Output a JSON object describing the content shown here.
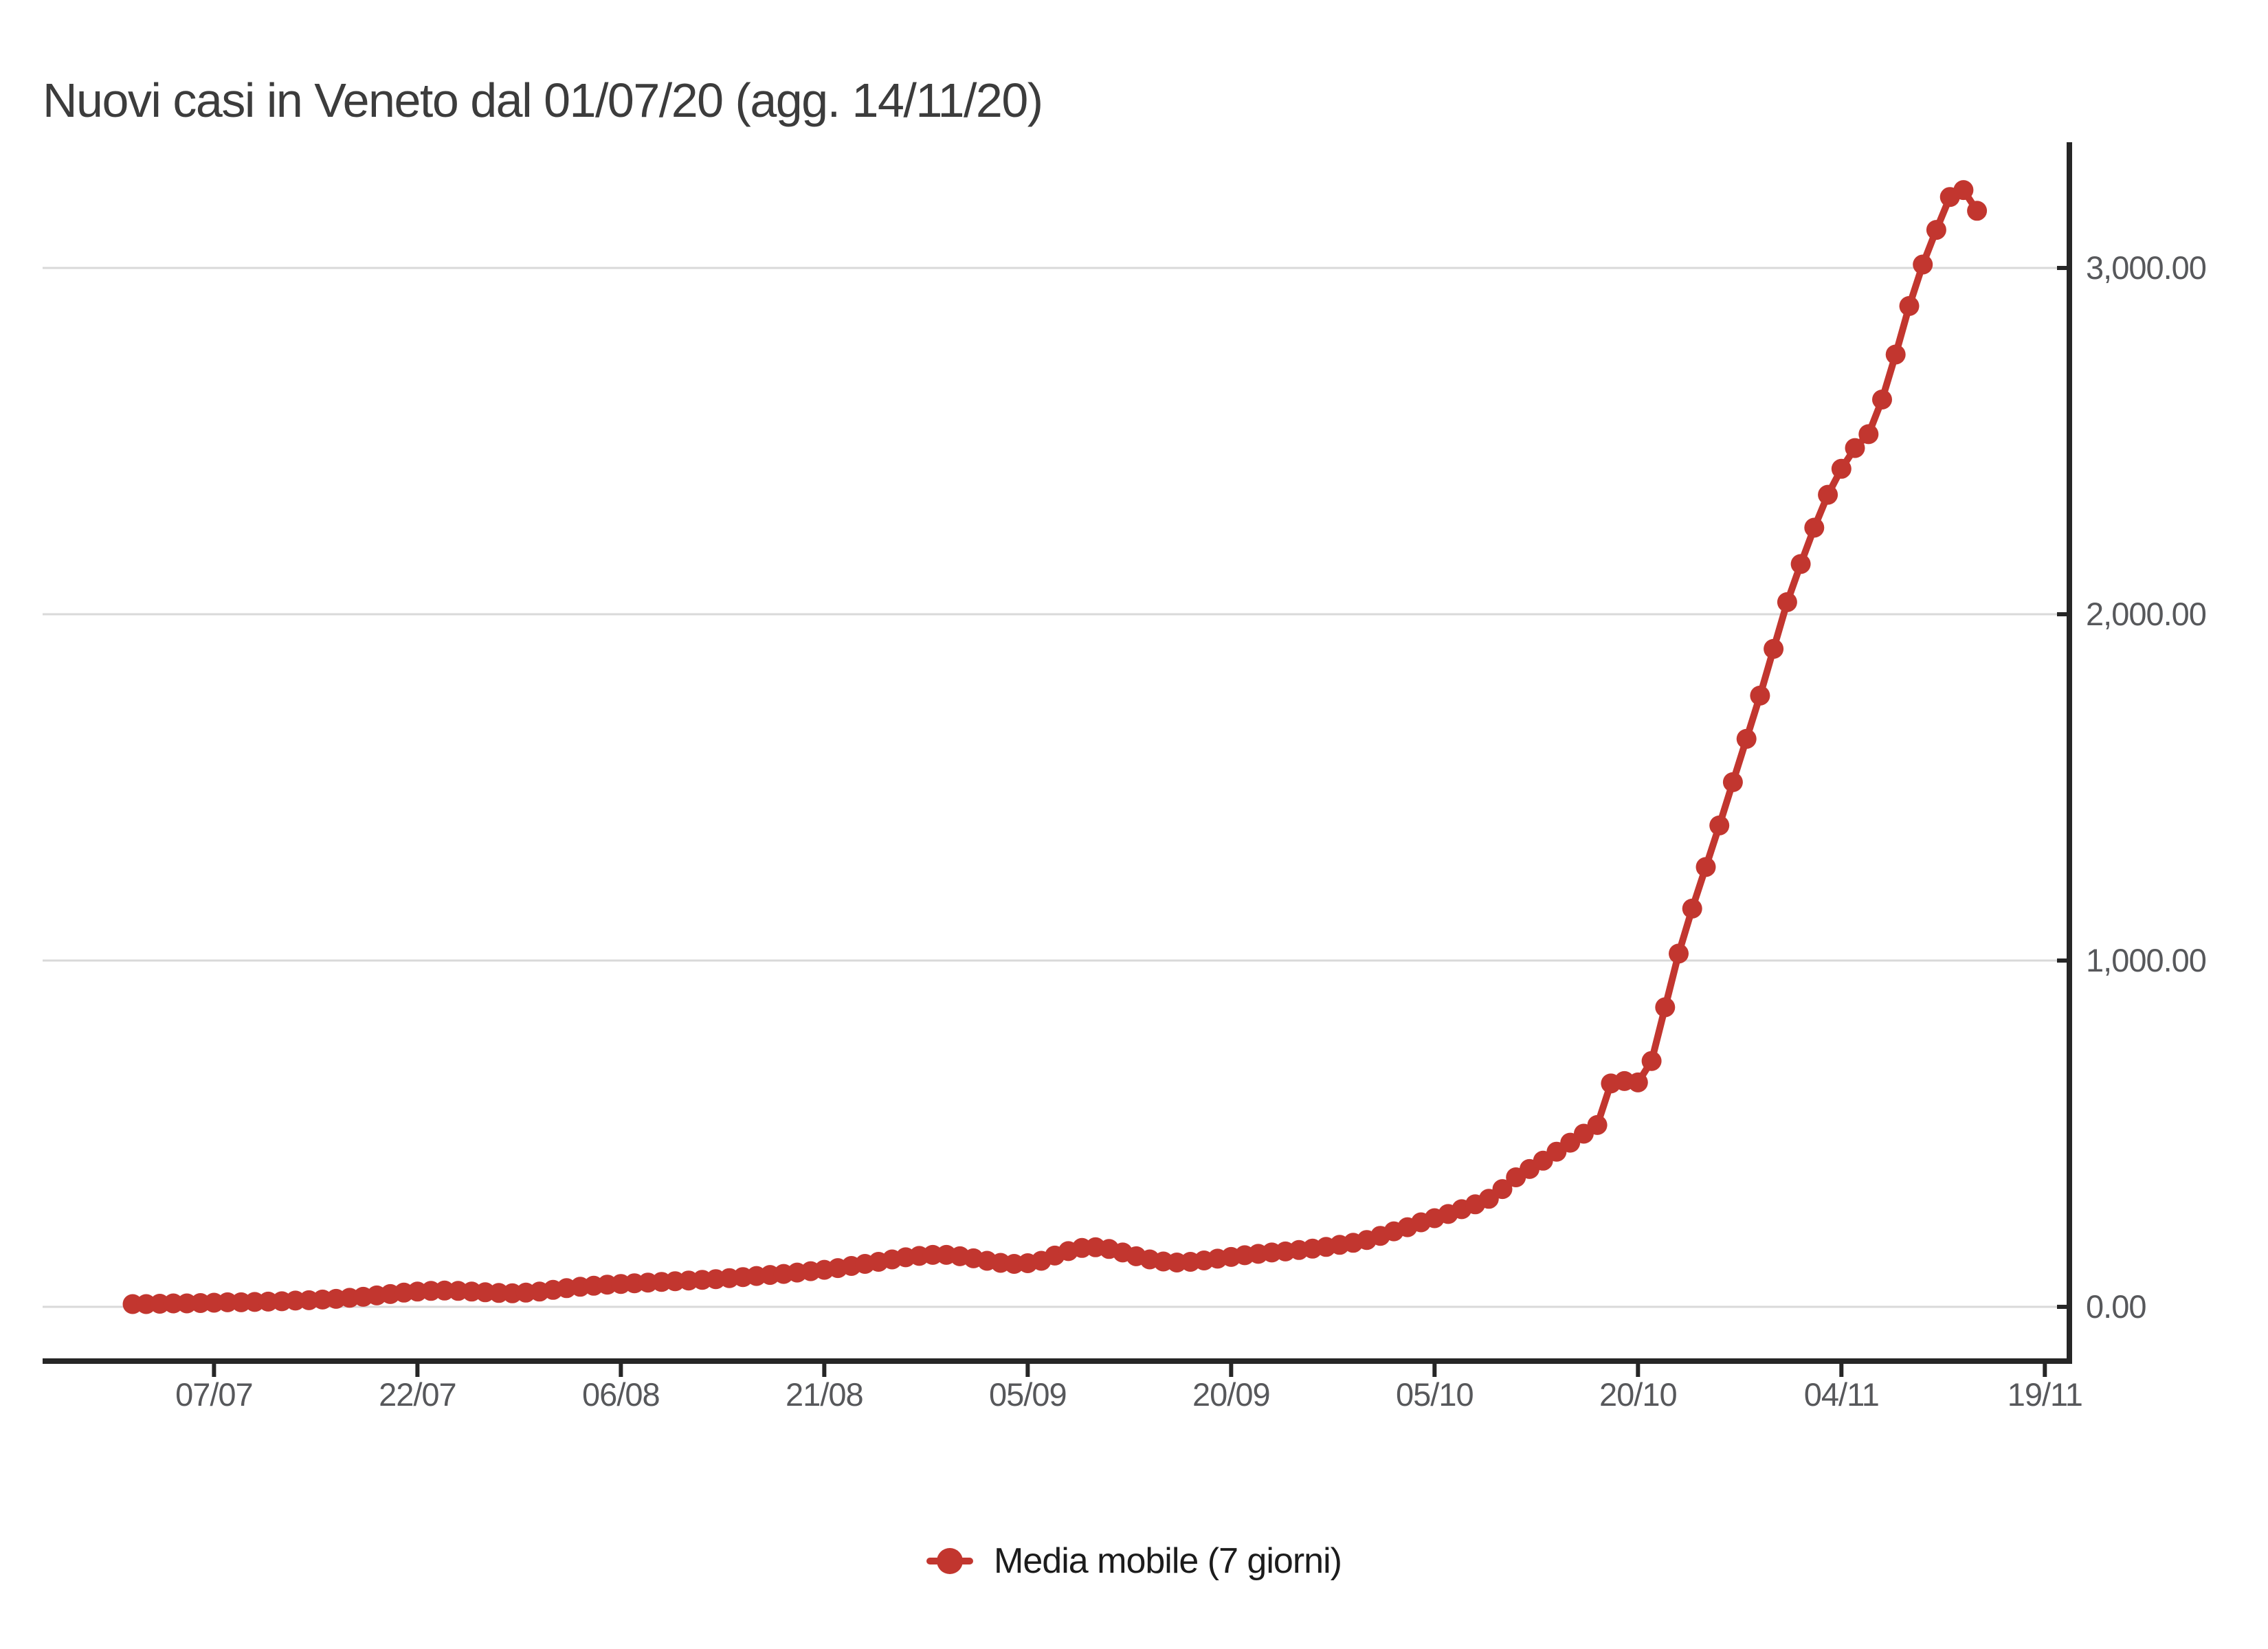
{
  "title": "Nuovi casi in Veneto dal 01/07/20 (agg. 14/11/20)",
  "legend": {
    "label": "Media mobile (7 giorni)"
  },
  "colors": {
    "series": "#c2362f",
    "grid": "#d9d9d9",
    "axis": "#262626",
    "tick_label": "#57585b",
    "title": "#3c3c3c",
    "legend_text": "#1c1c1c",
    "background": "#ffffff"
  },
  "y_axis": {
    "side": "right",
    "ticks": [
      {
        "label": "0.00",
        "value": 0
      },
      {
        "label": "1,000.00",
        "value": 1000
      },
      {
        "label": "2,000.00",
        "value": 2000
      },
      {
        "label": "3,000.00",
        "value": 3000
      }
    ]
  },
  "x_axis": {
    "ticks": [
      {
        "label": "07/07",
        "day": 6
      },
      {
        "label": "22/07",
        "day": 21
      },
      {
        "label": "06/08",
        "day": 36
      },
      {
        "label": "21/08",
        "day": 51
      },
      {
        "label": "05/09",
        "day": 66
      },
      {
        "label": "20/09",
        "day": 81
      },
      {
        "label": "05/10",
        "day": 96
      },
      {
        "label": "20/10",
        "day": 111
      },
      {
        "label": "04/11",
        "day": 126
      },
      {
        "label": "19/11",
        "day": 141
      }
    ]
  },
  "chart_data": {
    "type": "line",
    "title": "Nuovi casi in Veneto dal 01/07/20 (agg. 14/11/20)",
    "series_name": "Media mobile (7 giorni)",
    "xlabel": "",
    "ylabel": "",
    "ylim": [
      0,
      3520
    ],
    "x_range": [
      "01/07/20",
      "14/11/20"
    ],
    "grid": "horizontal",
    "legend_position": "bottom",
    "marker": "circle",
    "x_dates": [
      "01/07",
      "02/07",
      "03/07",
      "04/07",
      "05/07",
      "06/07",
      "07/07",
      "08/07",
      "09/07",
      "10/07",
      "11/07",
      "12/07",
      "13/07",
      "14/07",
      "15/07",
      "16/07",
      "17/07",
      "18/07",
      "19/07",
      "20/07",
      "21/07",
      "22/07",
      "23/07",
      "24/07",
      "25/07",
      "26/07",
      "27/07",
      "28/07",
      "29/07",
      "30/07",
      "31/07",
      "01/08",
      "02/08",
      "03/08",
      "04/08",
      "05/08",
      "06/08",
      "07/08",
      "08/08",
      "09/08",
      "10/08",
      "11/08",
      "12/08",
      "13/08",
      "14/08",
      "15/08",
      "16/08",
      "17/08",
      "18/08",
      "19/08",
      "20/08",
      "21/08",
      "22/08",
      "23/08",
      "24/08",
      "25/08",
      "26/08",
      "27/08",
      "28/08",
      "29/08",
      "30/08",
      "31/08",
      "01/09",
      "02/09",
      "03/09",
      "04/09",
      "05/09",
      "06/09",
      "07/09",
      "08/09",
      "09/09",
      "10/09",
      "11/09",
      "12/09",
      "13/09",
      "14/09",
      "15/09",
      "16/09",
      "17/09",
      "18/09",
      "19/09",
      "20/09",
      "21/09",
      "22/09",
      "23/09",
      "24/09",
      "25/09",
      "26/09",
      "27/09",
      "28/09",
      "29/09",
      "30/09",
      "01/10",
      "02/10",
      "03/10",
      "04/10",
      "05/10",
      "06/10",
      "07/10",
      "08/10",
      "09/10",
      "10/10",
      "11/10",
      "12/10",
      "13/10",
      "14/10",
      "15/10",
      "16/10",
      "17/10",
      "18/10",
      "19/10",
      "20/10",
      "21/10",
      "22/10",
      "23/10",
      "24/10",
      "25/10",
      "26/10",
      "27/10",
      "28/10",
      "29/10",
      "30/10",
      "31/10",
      "01/11",
      "02/11",
      "03/11",
      "04/11",
      "05/11",
      "06/11",
      "07/11",
      "08/11",
      "09/11",
      "10/11",
      "11/11",
      "12/11",
      "13/11",
      "14/11"
    ],
    "values": [
      8,
      8,
      9,
      10,
      10,
      11,
      12,
      13,
      13,
      14,
      15,
      16,
      18,
      19,
      21,
      23,
      26,
      29,
      33,
      37,
      41,
      44,
      46,
      47,
      46,
      44,
      42,
      40,
      39,
      41,
      44,
      49,
      54,
      58,
      61,
      64,
      66,
      68,
      70,
      72,
      74,
      76,
      78,
      80,
      83,
      86,
      89,
      92,
      95,
      99,
      103,
      107,
      112,
      118,
      124,
      130,
      137,
      143,
      147,
      150,
      150,
      146,
      140,
      133,
      127,
      124,
      126,
      133,
      148,
      161,
      170,
      172,
      167,
      157,
      146,
      137,
      131,
      128,
      130,
      134,
      139,
      144,
      149,
      153,
      157,
      160,
      164,
      168,
      173,
      179,
      185,
      193,
      205,
      218,
      230,
      244,
      256,
      268,
      282,
      296,
      312,
      340,
      374,
      398,
      422,
      448,
      474,
      500,
      525,
      645,
      652,
      648,
      710,
      865,
      1020,
      1150,
      1270,
      1390,
      1515,
      1640,
      1765,
      1900,
      2035,
      2145,
      2250,
      2345,
      2420,
      2480,
      2520,
      2620,
      2750,
      2890,
      3010,
      3110,
      3205,
      3225,
      3165
    ]
  }
}
